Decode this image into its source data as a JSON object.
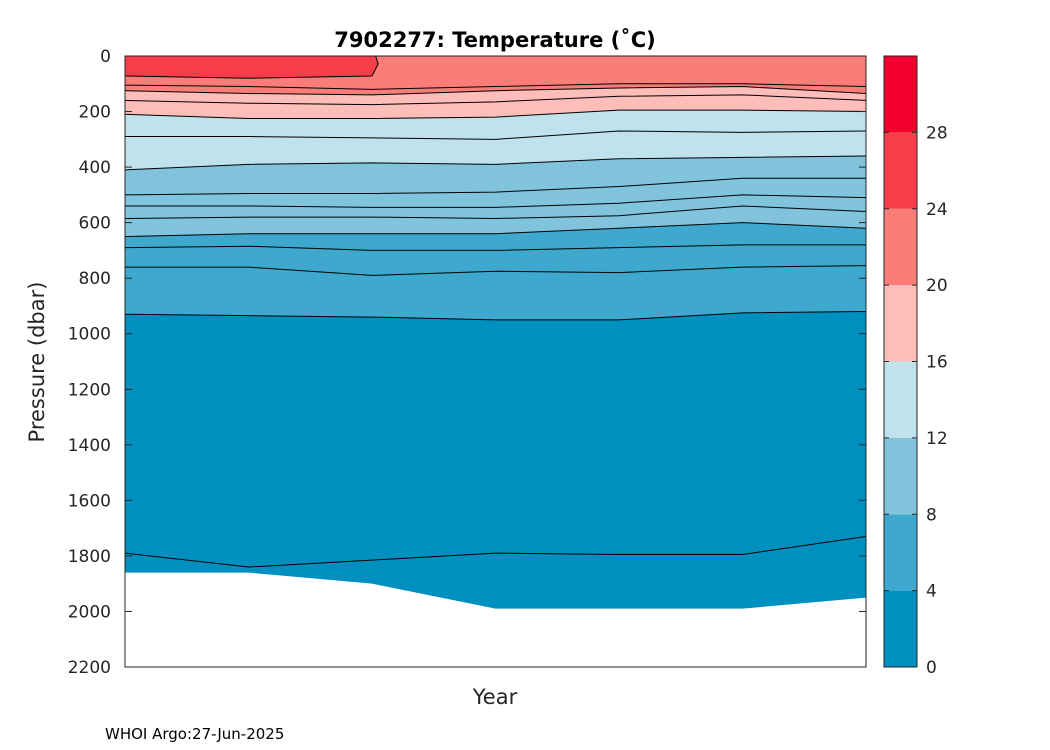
{
  "chart_data": {
    "type": "contourf",
    "title": "7902277:  Temperature (˚C)",
    "xlabel": "Year",
    "ylabel": "Pressure (dbar)",
    "x": [
      0,
      1,
      2,
      3,
      4,
      5,
      6
    ],
    "ylim": [
      0,
      2200
    ],
    "y_reversed": true,
    "yticks": [
      0,
      200,
      400,
      600,
      800,
      1000,
      1200,
      1400,
      1600,
      1800,
      2000,
      2200
    ],
    "colorbar": {
      "levels": [
        0,
        4,
        8,
        12,
        16,
        20,
        24,
        28,
        32
      ],
      "tick_labels": [
        0,
        4,
        8,
        12,
        16,
        20,
        24,
        28
      ],
      "colors": [
        "#0090c0",
        "#3fa8ce",
        "#81c3dd",
        "#c0e2ec",
        "#fdbdb8",
        "#fb7d79",
        "#f73c4a",
        "#f4002e"
      ]
    },
    "max_pressure": [
      1860,
      1860,
      1900,
      1990,
      1990,
      1990,
      1950
    ],
    "band_boundaries_dbar": [
      {
        "temp": 26,
        "depth": [
          72,
          80,
          72,
          null,
          null,
          null,
          null
        ]
      },
      {
        "temp": 22,
        "depth": [
          105,
          110,
          120,
          110,
          100,
          100,
          110
        ]
      },
      {
        "temp": 20,
        "depth": [
          125,
          135,
          140,
          125,
          115,
          110,
          135
        ]
      },
      {
        "temp": 18,
        "depth": [
          160,
          170,
          175,
          165,
          145,
          140,
          160
        ]
      },
      {
        "temp": 16,
        "depth": [
          210,
          225,
          225,
          220,
          195,
          195,
          200
        ]
      },
      {
        "temp": 14,
        "depth": [
          290,
          290,
          295,
          300,
          270,
          275,
          270
        ]
      },
      {
        "temp": 12,
        "depth": [
          410,
          390,
          385,
          390,
          370,
          365,
          360
        ]
      },
      {
        "temp": 11,
        "depth": [
          500,
          495,
          495,
          490,
          470,
          440,
          440
        ]
      },
      {
        "temp": 10,
        "depth": [
          540,
          540,
          545,
          545,
          530,
          500,
          510
        ]
      },
      {
        "temp": 9,
        "depth": [
          585,
          580,
          580,
          585,
          575,
          540,
          560
        ]
      },
      {
        "temp": 8,
        "depth": [
          650,
          640,
          640,
          640,
          620,
          600,
          620
        ]
      },
      {
        "temp": 7,
        "depth": [
          690,
          685,
          700,
          700,
          690,
          680,
          680
        ]
      },
      {
        "temp": 6,
        "depth": [
          760,
          760,
          790,
          775,
          780,
          760,
          755
        ]
      },
      {
        "temp": 4,
        "depth": [
          930,
          935,
          940,
          950,
          950,
          925,
          920
        ]
      },
      {
        "temp": 3,
        "depth": [
          1790,
          1840,
          1815,
          1790,
          1795,
          1795,
          1730
        ]
      }
    ]
  },
  "footer": "WHOI Argo:27-Jun-2025"
}
